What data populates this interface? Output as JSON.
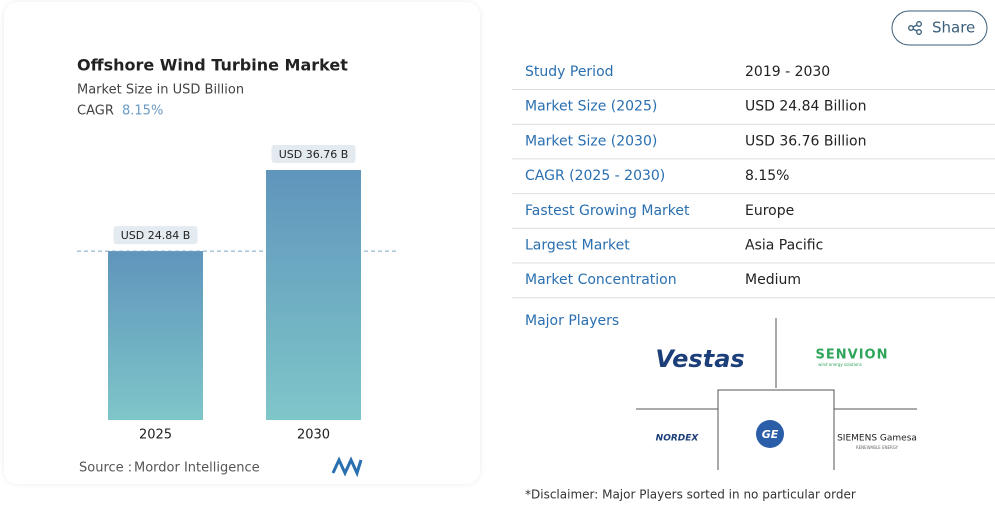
{
  "chart_data": {
    "type": "bar",
    "title": "Offshore Wind Turbine Market",
    "subtitle": "Market Size in USD Billion",
    "cagr_label": "CAGR",
    "cagr_value": "8.15%",
    "categories": [
      "2025",
      "2030"
    ],
    "values": [
      24.84,
      36.76
    ],
    "value_labels": [
      "USD 24.84 B",
      "USD 36.76 B"
    ],
    "color_top": "#5f95bc",
    "color_bottom": "#7fc6c9",
    "source_label": "Source :",
    "source": "Mordor Intelligence"
  },
  "share": "Share",
  "table": {
    "rows": [
      [
        "Study Period",
        "2019 - 2030"
      ],
      [
        "Market Size (2025)",
        "USD 24.84 Billion"
      ],
      [
        "Market Size (2030)",
        "USD 36.76 Billion"
      ],
      [
        "CAGR (2025 - 2030)",
        "8.15%"
      ],
      [
        "Fastest Growing Market",
        "Europe"
      ],
      [
        "Largest Market",
        "Asia Pacific"
      ],
      [
        "Market Concentration",
        "Medium"
      ]
    ]
  },
  "players": {
    "title": "Major Players",
    "logos": [
      "Vestas",
      "SENVION",
      "NORDEX",
      "GE",
      "SIEMENS Gamesa"
    ],
    "taglines": [
      "wind energy solutions",
      "RENEWABLE ENERGY"
    ]
  },
  "disclaimer": "*Disclaimer: Major Players sorted in no particular order"
}
